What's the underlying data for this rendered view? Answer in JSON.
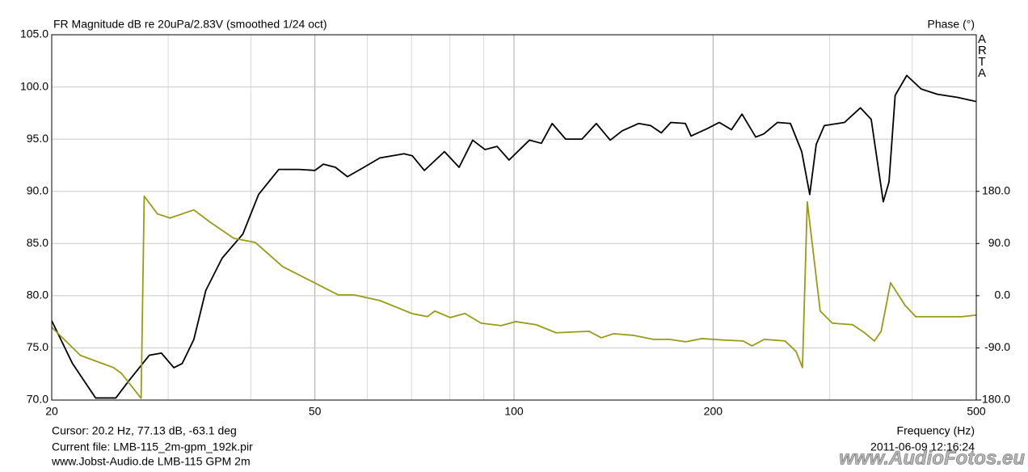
{
  "chart_data": {
    "type": "line",
    "title": "FR Magnitude dB re 20uPa/2.83V (smoothed 1/24 oct)",
    "y2_label": "Phase (°)",
    "brand": "ARTA",
    "x_label": "Frequency (Hz)",
    "footer_left": [
      "Cursor: 20.2 Hz, 77.13 dB, -63.1 deg",
      "Current file: LMB-115_2m-gpm_192k.pir",
      "www.Jobst-Audio.de  LMB-115  GPM  2m"
    ],
    "footer_right": "2011-06-09  12:16:24",
    "watermark": "www.AudioFotos.eu",
    "x_scale": "log",
    "xlim": [
      20,
      500
    ],
    "xticks": [
      20,
      50,
      100,
      200,
      500
    ],
    "x_minor_grid": [
      30,
      40,
      60,
      70,
      80,
      90,
      300,
      400
    ],
    "ylim": [
      70,
      105
    ],
    "yticks": [
      {
        "value": 70,
        "label": "70.0"
      },
      {
        "value": 75,
        "label": "75.0"
      },
      {
        "value": 80,
        "label": "80.0"
      },
      {
        "value": 85,
        "label": "85.0"
      },
      {
        "value": 90,
        "label": "90.0"
      },
      {
        "value": 95,
        "label": "95.0"
      },
      {
        "value": 100,
        "label": "100.0"
      },
      {
        "value": 105,
        "label": "105.0"
      }
    ],
    "y2lim": [
      -180,
      450
    ],
    "y2ticks": [
      {
        "value": -180,
        "label": "-180.0"
      },
      {
        "value": -90,
        "label": "-90.0"
      },
      {
        "value": 0,
        "label": "0.0"
      },
      {
        "value": 90,
        "label": "90.0"
      },
      {
        "value": 180,
        "label": "180.0"
      }
    ],
    "grid": true,
    "series": [
      {
        "color": "#000000",
        "axis": "y",
        "x": [
          20,
          21.5,
          23.3,
          25.0,
          26.2,
          28.1,
          29.3,
          30.6,
          31.5,
          32.8,
          34.2,
          36.2,
          38.9,
          41.1,
          44.1,
          47.3,
          50,
          51.5,
          53.7,
          56.0,
          59.3,
          62.7,
          68.2,
          70.2,
          73.2,
          78.5,
          82.6,
          86.6,
          90.4,
          94.3,
          98.3,
          105.5,
          110,
          114.2,
          119.7,
          126.7,
          133.2,
          139.8,
          145.8,
          154.3,
          160.9,
          167,
          172.6,
          181.6,
          185.2,
          195.9,
          204.4,
          213.2,
          221.2,
          232,
          238.6,
          250.3,
          261.8,
          272.3,
          280,
          286.4,
          294.6,
          316,
          334,
          346.8,
          361.7,
          369,
          377,
          392.5,
          412.8,
          436.7,
          468.5,
          500
        ],
        "values": [
          77.6,
          73.5,
          70.2,
          70.2,
          71.9,
          74.3,
          74.5,
          73.1,
          73.5,
          75.8,
          80.5,
          83.6,
          85.9,
          89.7,
          92.1,
          92.1,
          92.0,
          92.6,
          92.3,
          91.4,
          92.3,
          93.2,
          93.6,
          93.4,
          92.0,
          93.8,
          92.3,
          94.9,
          94.0,
          94.3,
          93.0,
          94.9,
          94.6,
          96.5,
          95.0,
          95.0,
          96.5,
          94.9,
          95.8,
          96.5,
          96.3,
          95.6,
          96.6,
          96.5,
          95.3,
          96.0,
          96.6,
          95.9,
          97.4,
          95.2,
          95.5,
          96.6,
          96.5,
          93.8,
          89.7,
          94.5,
          96.3,
          96.6,
          98.0,
          96.9,
          89.0,
          90.9,
          99.2,
          101.1,
          99.8,
          99.3,
          99.0,
          98.6
        ]
      },
      {
        "color": "#9a9a1a",
        "axis": "y2",
        "x": [
          20,
          22.1,
          24.8,
          25.5,
          27.3,
          27.6,
          28.9,
          30.2,
          32.8,
          34.7,
          37.7,
          40.6,
          44.7,
          48.6,
          54.2,
          57.3,
          62.7,
          70.2,
          74.0,
          75.9,
          80.1,
          84.3,
          89.2,
          95.6,
          100.6,
          108.0,
          115.8,
          129.9,
          135.5,
          141.4,
          151.5,
          162.4,
          171.8,
          181.8,
          192.2,
          209,
          222,
          229,
          239,
          257,
          267,
          273,
          277.6,
          282.3,
          290.4,
          303,
          325,
          339,
          350.7,
          359,
          371,
          390.3,
          405,
          437,
          474.8,
          500
        ],
        "values": [
          -54.4,
          -103,
          -124,
          -134,
          -177,
          171.6,
          141,
          134,
          148,
          127,
          99,
          92,
          50,
          29,
          1.4,
          1.4,
          -8.4,
          -31,
          -36,
          -26.5,
          -37.7,
          -30.7,
          -47.4,
          -51.6,
          -44.7,
          -50,
          -64,
          -61.4,
          -72.6,
          -65.6,
          -68.4,
          -75.3,
          -75.3,
          -79.5,
          -74,
          -76.7,
          -78.1,
          -86.5,
          -75.3,
          -78.1,
          -96.3,
          -124,
          161.9,
          92,
          -26.5,
          -47.4,
          -50,
          -64,
          -78.1,
          -61.4,
          22.3,
          -16.7,
          -36.3,
          -36.3,
          -36.3,
          -33.5
        ]
      }
    ]
  }
}
